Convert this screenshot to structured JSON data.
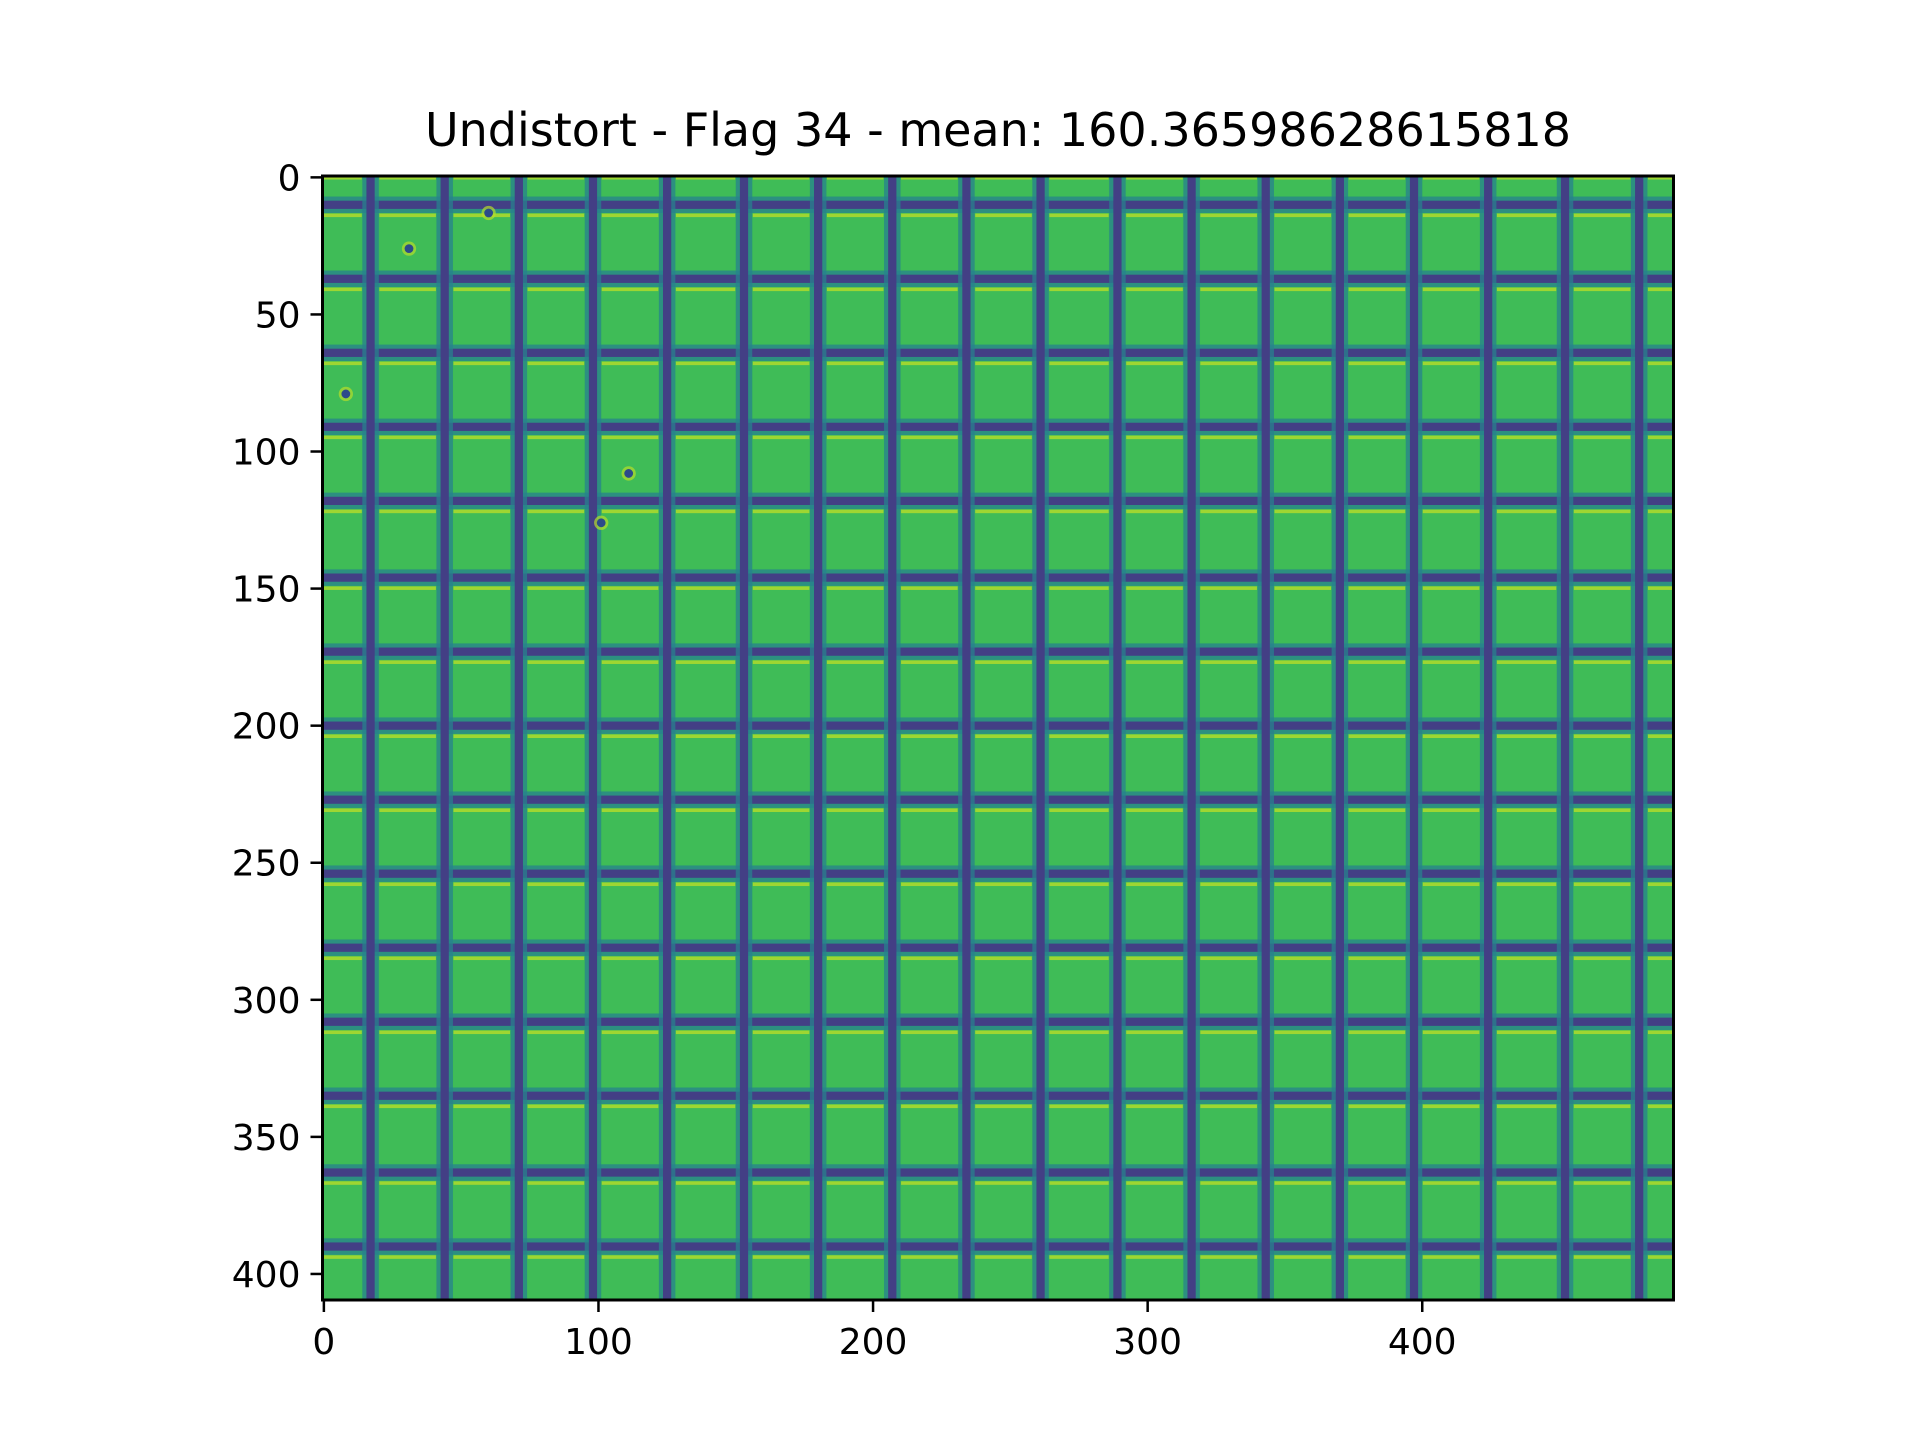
{
  "chart_data": {
    "type": "heatmap",
    "title": "Undistort - Flag 34 - mean: 160.36598628615818",
    "xlabel": "",
    "ylabel": "",
    "xlim": [
      -0.5,
      491.5
    ],
    "ylim": [
      409.5,
      -0.5
    ],
    "x_ticks": [
      0,
      100,
      200,
      300,
      400
    ],
    "y_ticks": [
      0,
      50,
      100,
      150,
      200,
      250,
      300,
      350,
      400
    ],
    "x_tick_labels": [
      "0",
      "100",
      "200",
      "300",
      "400"
    ],
    "y_tick_labels": [
      "0",
      "50",
      "100",
      "150",
      "200",
      "250",
      "300",
      "350",
      "400"
    ],
    "colormap": "viridis",
    "image_description_values": {
      "grid_line_period_px": 27.2,
      "vertical_dark_line_x": [
        17,
        44,
        71,
        98,
        125,
        153,
        180,
        207,
        234,
        261,
        289,
        316,
        343,
        370,
        397,
        424,
        452,
        479
      ],
      "horizontal_dark_line_y": [
        10,
        37,
        64,
        91,
        118,
        146,
        173,
        200,
        227,
        254,
        281,
        308,
        335,
        363,
        390
      ],
      "defect_spots": [
        {
          "x": 60,
          "y": 13
        },
        {
          "x": 31,
          "y": 26
        },
        {
          "x": 8,
          "y": 79
        },
        {
          "x": 111,
          "y": 108
        },
        {
          "x": 101,
          "y": 126
        }
      ]
    },
    "colors": {
      "background": "#3dbb57",
      "cell_highlight": "#b7dd29",
      "grid_line": "#433f85",
      "grid_line_edge": "#27818e",
      "defect": "#2c4a8a"
    }
  }
}
